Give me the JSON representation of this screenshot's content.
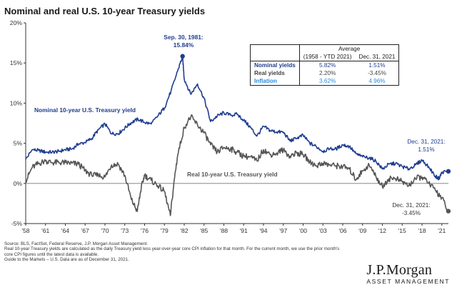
{
  "title": "Nominal and real U.S. 10-year Treasury yields",
  "colors": {
    "nominal": "#1f3d8f",
    "real": "#555555",
    "inflation": "#2a8bd8",
    "axis": "#333333"
  },
  "chart_data": {
    "type": "line",
    "title": "Nominal and real U.S. 10-year Treasury yields",
    "xlabel": "",
    "ylabel": "",
    "xlim": [
      1958,
      2022
    ],
    "ylim": [
      -5,
      20
    ],
    "y_ticks": [
      "-5%",
      "0%",
      "5%",
      "10%",
      "15%",
      "20%"
    ],
    "y_tick_values": [
      -5,
      0,
      5,
      10,
      15,
      20
    ],
    "x_ticks": [
      "'58",
      "'61",
      "'64",
      "'67",
      "'70",
      "'73",
      "'76",
      "'79",
      "'82",
      "'85",
      "'88",
      "'91",
      "'94",
      "'97",
      "'00",
      "'03",
      "'06",
      "'09",
      "'12",
      "'15",
      "'18",
      "'21"
    ],
    "x_tick_values": [
      1958,
      1961,
      1964,
      1967,
      1970,
      1973,
      1976,
      1979,
      1982,
      1985,
      1988,
      1991,
      1994,
      1997,
      2000,
      2003,
      2006,
      2009,
      2012,
      2015,
      2018,
      2021
    ],
    "series": [
      {
        "name": "Nominal 10-year U.S. Treasury yield",
        "x": [
          1958,
          1959,
          1960,
          1961,
          1962,
          1963,
          1964,
          1965,
          1966,
          1967,
          1968,
          1969,
          1970,
          1971,
          1972,
          1973,
          1974,
          1975,
          1976,
          1977,
          1978,
          1979,
          1980,
          1981,
          1981.75,
          1982,
          1983,
          1984,
          1985,
          1986,
          1987,
          1988,
          1989,
          1990,
          1991,
          1992,
          1993,
          1994,
          1995,
          1996,
          1997,
          1998,
          1999,
          2000,
          2001,
          2002,
          2003,
          2004,
          2005,
          2006,
          2007,
          2008,
          2009,
          2010,
          2011,
          2012,
          2013,
          2014,
          2015,
          2016,
          2017,
          2018,
          2019,
          2020,
          2020.6,
          2021,
          2021.99
        ],
        "values": [
          3.0,
          4.2,
          4.1,
          3.9,
          3.9,
          4.0,
          4.2,
          4.3,
          4.9,
          5.1,
          5.6,
          6.7,
          7.4,
          6.2,
          6.2,
          6.9,
          7.6,
          8.0,
          7.6,
          7.4,
          8.4,
          9.4,
          11.5,
          14.0,
          15.84,
          13.0,
          11.1,
          12.4,
          10.6,
          7.7,
          8.4,
          8.8,
          8.5,
          8.6,
          7.9,
          7.0,
          5.9,
          7.1,
          6.6,
          6.4,
          6.4,
          5.3,
          5.6,
          6.0,
          5.0,
          4.6,
          4.0,
          4.3,
          4.3,
          4.8,
          4.6,
          3.7,
          3.3,
          3.2,
          2.8,
          1.8,
          2.4,
          2.5,
          2.1,
          1.8,
          2.3,
          2.9,
          2.1,
          0.9,
          0.6,
          1.4,
          1.51
        ]
      },
      {
        "name": "Real 10-year U.S. Treasury yield",
        "x": [
          1958,
          1959,
          1960,
          1961,
          1962,
          1963,
          1964,
          1965,
          1966,
          1967,
          1968,
          1969,
          1970,
          1971,
          1972,
          1973,
          1974,
          1974.9,
          1975.5,
          1976,
          1977,
          1978,
          1979,
          1979.9,
          1980.5,
          1981,
          1982,
          1983,
          1984,
          1985,
          1986,
          1987,
          1988,
          1989,
          1990,
          1991,
          1992,
          1993,
          1994,
          1995,
          1996,
          1997,
          1998,
          1999,
          2000,
          2001,
          2002,
          2003,
          2004,
          2005,
          2006,
          2007,
          2008,
          2009,
          2010,
          2011,
          2012,
          2013,
          2014,
          2015,
          2016,
          2017,
          2018,
          2019,
          2020,
          2021,
          2021.99
        ],
        "values": [
          0.3,
          2.0,
          2.5,
          2.8,
          2.6,
          2.6,
          2.6,
          2.5,
          2.4,
          1.6,
          1.0,
          1.0,
          0.8,
          2.3,
          2.4,
          1.0,
          -2.0,
          -3.5,
          -0.5,
          1.0,
          0.4,
          -0.3,
          -1.0,
          -4.0,
          0.5,
          3.5,
          7.0,
          8.3,
          7.3,
          6.3,
          4.8,
          3.9,
          4.5,
          4.3,
          3.9,
          3.4,
          3.3,
          2.8,
          4.2,
          3.6,
          3.8,
          4.2,
          3.4,
          3.8,
          3.6,
          2.7,
          2.2,
          2.5,
          2.3,
          2.2,
          2.1,
          1.8,
          0.5,
          1.6,
          2.3,
          0.9,
          -0.4,
          0.6,
          0.6,
          0.2,
          -0.3,
          0.6,
          0.8,
          0.0,
          -0.8,
          -1.8,
          -3.45
        ]
      }
    ],
    "annotations": [
      {
        "label": "Sep. 30, 1981:",
        "value": "15.84%"
      },
      {
        "label": "Dec. 31, 2021:",
        "value": "1.51%"
      },
      {
        "label": "Dec. 31, 2021:",
        "value": "-3.45%"
      }
    ]
  },
  "series_labels": {
    "nominal": "Nominal 10-year U.S. Treasury yield",
    "real": "Real 10-year U.S. Treasury yield"
  },
  "annotations": {
    "peak_date": "Sep. 30, 1981:",
    "peak_value": "15.84%",
    "end_nominal_date": "Dec. 31, 2021:",
    "end_nominal_value": "1.51%",
    "end_real_date": "Dec. 31, 2021:",
    "end_real_value": "-3.45%"
  },
  "stats_table": {
    "header_avg": "Average",
    "header_period": "(1958 - YTD 2021)",
    "header_latest": "Dec. 31, 2021",
    "rows": [
      {
        "label": "Nominal yields",
        "avg": "5.82%",
        "latest": "1.51%"
      },
      {
        "label": "Real yields",
        "avg": "2.20%",
        "latest": "-3.45%"
      },
      {
        "label": "Inflation",
        "avg": "3.62%",
        "latest": "4.96%"
      }
    ]
  },
  "notes": {
    "source": "Source: BLS, FactSet, Federal Reserve, J.P. Morgan Asset Management.",
    "line1": "Real 10-year Treasury yields are calculated as the daily Treasury yield less year-over-year core CPI inflation for that month. For the current month, we use the prior month's",
    "line2": "core CPI figures until the latest data is available.",
    "guide": "Guide to the Markets – U.S. Data are as of December 31, 2021."
  },
  "logo": {
    "brand": "J.P.Morgan",
    "sub": "ASSET MANAGEMENT"
  }
}
